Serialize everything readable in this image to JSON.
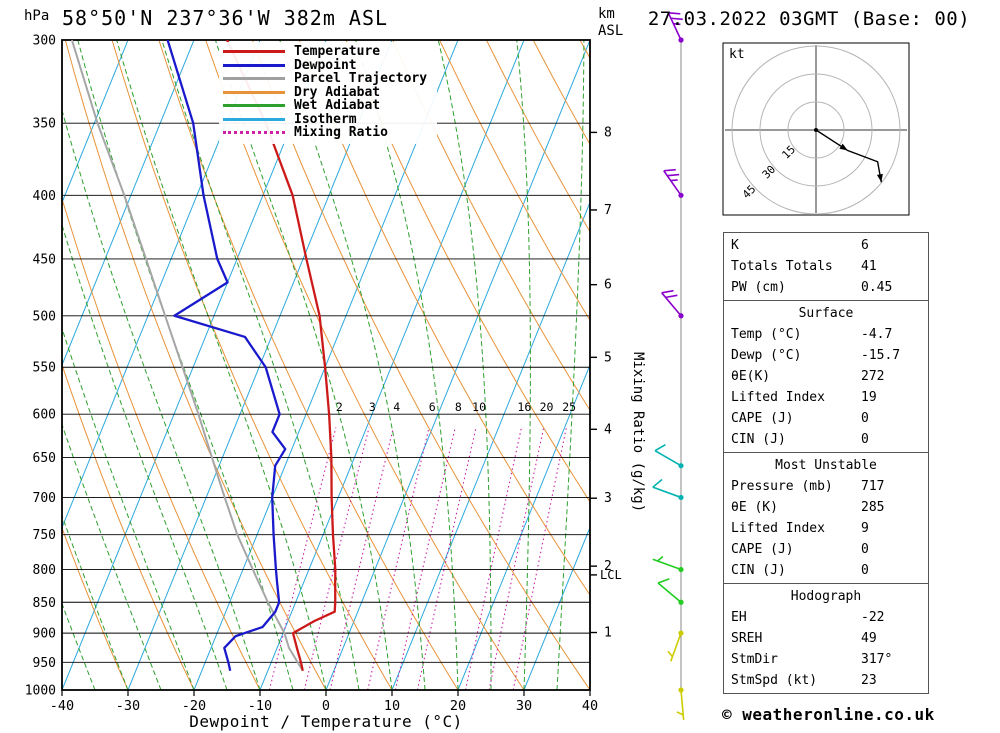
{
  "header": {
    "station": "58°50'N 237°36'W 382m ASL",
    "datetime": "27.03.2022 03GMT (Base: 00)",
    "pressure_unit": "hPa",
    "km_label": "km",
    "asl_label": "ASL"
  },
  "legend": [
    {
      "label": "Temperature",
      "color": "#cc1a1a",
      "style": "solid"
    },
    {
      "label": "Dewpoint",
      "color": "#1a1acc",
      "style": "solid"
    },
    {
      "label": "Parcel Trajectory",
      "color": "#a0a0a0",
      "style": "solid"
    },
    {
      "label": "Dry Adiabat",
      "color": "#e8933a",
      "style": "solid"
    },
    {
      "label": "Wet Adiabat",
      "color": "#2ea02e",
      "style": "solid"
    },
    {
      "label": "Isotherm",
      "color": "#2ca9dd",
      "style": "solid"
    },
    {
      "label": "Mixing Ratio",
      "color": "#cc22aa",
      "style": "dotted"
    }
  ],
  "axes": {
    "xlabel": "Dewpoint / Temperature (°C)",
    "mixing_ratio_label": "Mixing Ratio (g/kg)",
    "lcl_label": "LCL"
  },
  "hodograph": {
    "unit_label": "kt"
  },
  "table": {
    "sections": [
      {
        "title": null,
        "rows": [
          [
            "K",
            "6"
          ],
          [
            "Totals Totals",
            "41"
          ],
          [
            "PW (cm)",
            "0.45"
          ]
        ]
      },
      {
        "title": "Surface",
        "rows": [
          [
            "Temp (°C)",
            "-4.7"
          ],
          [
            "Dewp (°C)",
            "-15.7"
          ],
          [
            "θE(K)",
            "272"
          ],
          [
            "Lifted Index",
            "19"
          ],
          [
            "CAPE (J)",
            "0"
          ],
          [
            "CIN (J)",
            "0"
          ]
        ]
      },
      {
        "title": "Most Unstable",
        "rows": [
          [
            "Pressure (mb)",
            "717"
          ],
          [
            "θE (K)",
            "285"
          ],
          [
            "Lifted Index",
            "9"
          ],
          [
            "CAPE (J)",
            "0"
          ],
          [
            "CIN (J)",
            "0"
          ]
        ]
      },
      {
        "title": "Hodograph",
        "rows": [
          [
            "EH",
            "-22"
          ],
          [
            "SREH",
            "49"
          ],
          [
            "StmDir",
            "317°"
          ],
          [
            "StmSpd (kt)",
            "23"
          ]
        ]
      }
    ]
  },
  "footer": {
    "copyright": "© weatheronline.co.uk"
  },
  "chart_data": {
    "type": "line",
    "title": "58°50'N 237°36'W 382m ASL",
    "xlabel": "Dewpoint / Temperature (°C)",
    "ylabel": "hPa",
    "x_range": [
      -40,
      40
    ],
    "x_ticks": [
      -40,
      -30,
      -20,
      -10,
      0,
      10,
      20,
      30,
      40
    ],
    "pressure_range": [
      1000,
      300
    ],
    "pressure_ticks": [
      300,
      350,
      400,
      450,
      500,
      550,
      600,
      650,
      700,
      750,
      800,
      850,
      900,
      950,
      1000
    ],
    "skew_degC_over_full_height": 40,
    "km_ticks": [
      {
        "km": 8,
        "p": 356
      },
      {
        "km": 7,
        "p": 411
      },
      {
        "km": 6,
        "p": 472
      },
      {
        "km": 5,
        "p": 540
      },
      {
        "km": 4,
        "p": 617
      },
      {
        "km": 3,
        "p": 701
      },
      {
        "km": 2,
        "p": 795
      },
      {
        "km": 1,
        "p": 899
      }
    ],
    "lcl_pressure": 808,
    "series": [
      {
        "name": "Temperature",
        "color": "#cc1a1a",
        "points": [
          [
            965,
            -4.7
          ],
          [
            950,
            -5.5
          ],
          [
            925,
            -7
          ],
          [
            900,
            -8.5
          ],
          [
            880,
            -6
          ],
          [
            865,
            -3.5
          ],
          [
            850,
            -4
          ],
          [
            820,
            -5.2
          ],
          [
            800,
            -6
          ],
          [
            750,
            -8.5
          ],
          [
            700,
            -11
          ],
          [
            650,
            -13.5
          ],
          [
            600,
            -16.5
          ],
          [
            550,
            -20
          ],
          [
            500,
            -24
          ],
          [
            450,
            -29.5
          ],
          [
            400,
            -35.5
          ],
          [
            350,
            -44
          ],
          [
            300,
            -55
          ]
        ]
      },
      {
        "name": "Dewpoint",
        "color": "#1a1acc",
        "points": [
          [
            965,
            -15.7
          ],
          [
            950,
            -16.5
          ],
          [
            925,
            -18
          ],
          [
            905,
            -17
          ],
          [
            890,
            -13.5
          ],
          [
            865,
            -12.5
          ],
          [
            850,
            -12.5
          ],
          [
            820,
            -14
          ],
          [
            800,
            -15
          ],
          [
            750,
            -17.5
          ],
          [
            700,
            -20
          ],
          [
            660,
            -21.5
          ],
          [
            640,
            -21
          ],
          [
            620,
            -24
          ],
          [
            600,
            -24
          ],
          [
            550,
            -29
          ],
          [
            520,
            -34
          ],
          [
            500,
            -46
          ],
          [
            470,
            -40
          ],
          [
            450,
            -43
          ],
          [
            400,
            -49
          ],
          [
            350,
            -55
          ],
          [
            300,
            -64
          ]
        ]
      },
      {
        "name": "Parcel Trajectory",
        "color": "#a6a6a6",
        "points": [
          [
            965,
            -4.7
          ],
          [
            925,
            -8.2
          ],
          [
            900,
            -9.8
          ],
          [
            850,
            -14.2
          ],
          [
            808,
            -17.8
          ],
          [
            750,
            -23
          ],
          [
            700,
            -27.2
          ],
          [
            650,
            -31.6
          ],
          [
            600,
            -36.3
          ],
          [
            550,
            -41.6
          ],
          [
            500,
            -47.4
          ],
          [
            450,
            -53.8
          ],
          [
            400,
            -61
          ],
          [
            350,
            -69.5
          ],
          [
            300,
            -78.5
          ]
        ]
      }
    ],
    "background": {
      "isotherm_step": 10,
      "isotherm_color": "#2ca9dd",
      "dry_adiabat_step": 10,
      "dry_adiabat_color": "#e8933a",
      "wet_adiabat_step": 5,
      "wet_adiabat_color": "#2ea02e",
      "mixing_ratio_values": [
        2,
        3,
        4,
        6,
        8,
        10,
        16,
        20,
        25
      ],
      "mixing_ratio_color": "#cc22aa"
    },
    "wind_barbs": [
      {
        "p": 300,
        "dir": 335,
        "spd": 25,
        "color": "#8a00cc"
      },
      {
        "p": 400,
        "dir": 325,
        "spd": 25,
        "color": "#8a00cc"
      },
      {
        "p": 500,
        "dir": 320,
        "spd": 20,
        "color": "#8a00cc"
      },
      {
        "p": 660,
        "dir": 300,
        "spd": 10,
        "color": "#00b2b2"
      },
      {
        "p": 700,
        "dir": 290,
        "spd": 10,
        "color": "#00b2b2"
      },
      {
        "p": 800,
        "dir": 290,
        "spd": 5,
        "color": "#22cc22"
      },
      {
        "p": 850,
        "dir": 310,
        "spd": 8,
        "color": "#22cc22"
      },
      {
        "p": 900,
        "dir": 200,
        "spd": 5,
        "color": "#cccc00"
      },
      {
        "p": 1000,
        "dir": 175,
        "spd": 5,
        "color": "#cccc00"
      }
    ],
    "hodograph": {
      "rings_kt": [
        15,
        30,
        45
      ],
      "trace_uv_kt": [
        [
          0,
          0
        ],
        [
          17,
          -11
        ],
        [
          33,
          -17
        ],
        [
          35,
          -28
        ]
      ],
      "arrow_indices": [
        1,
        3
      ]
    }
  }
}
